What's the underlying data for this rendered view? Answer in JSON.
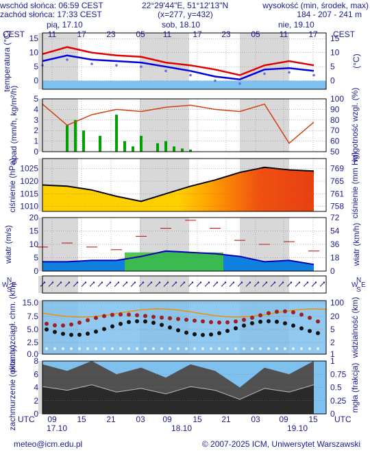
{
  "header": {
    "sunrise": "wschód słońca: 06:59 CEST",
    "sunset": "zachód słońca: 17:33 CEST",
    "coords": "22°29'44\"E, 51°12'13\"N",
    "grid": "(x=277, y=432)",
    "elev_title": "wysokość (min, środek, max)",
    "elev_values": "184 - 207 - 241 m"
  },
  "tz_label": "CEST",
  "utc_label": "UTC",
  "days_top": [
    "pią, 17.10",
    "sob, 18.10",
    "nie, 19.10"
  ],
  "hours_top": [
    "11",
    "17",
    "23",
    "05",
    "11",
    "17",
    "23",
    "05",
    "11",
    "17"
  ],
  "hours_bottom": [
    "09",
    "15",
    "21",
    "03",
    "09",
    "15",
    "21",
    "03",
    "09",
    "15"
  ],
  "days_bottom": [
    "17.10",
    "18.10",
    "19.10"
  ],
  "footer": {
    "email": "meteo@icm.edu.pl",
    "copyright": "© 2007-2025 ICM, Uniwersytet Warszawski"
  },
  "colors": {
    "text": "#1a1a8c",
    "night": "#d8d8d8",
    "temp_line": "#e00000",
    "dew_line": "#0000e0",
    "freeze_band": "#7ec0ee",
    "rain_bar": "#00a000",
    "humidity_line": "#d04010",
    "pressure_line": "#000000",
    "wind_mean": "#0000b0",
    "gust": "#c00000",
    "cloud_sky": "#7ec0ee",
    "cloud_dark": "#505050"
  },
  "chart_data": [
    {
      "type": "line",
      "name": "temperature",
      "ylabel": "temperatura (°C)",
      "yticks_left": [
        "15",
        "10",
        "5",
        "0"
      ],
      "yticks_right": [
        "15",
        "10",
        "5",
        "0"
      ],
      "ylabel_right": "(°C)",
      "ylim": [
        -3,
        17
      ],
      "x_hours": [
        0,
        6,
        12,
        18,
        24,
        30,
        36,
        42,
        48,
        54,
        60,
        66
      ],
      "series": [
        {
          "values": [
            9.5,
            12.0,
            10.0,
            9.0,
            8.5,
            6.5,
            5.5,
            4.0,
            2.0,
            5.5,
            7.0,
            5.5
          ]
        },
        {
          "values": [
            7.0,
            9.0,
            7.5,
            7.0,
            6.5,
            5.0,
            3.5,
            1.5,
            0.5,
            4.0,
            4.5,
            3.5
          ]
        }
      ]
    },
    {
      "type": "bar",
      "name": "precipitation",
      "ylabel": "opad (mm/h, kg/m²/h)",
      "ylabel_right": "wilgotność wzgl. (%)",
      "yticks_left": [
        "5",
        "4",
        "3",
        "2",
        "1",
        "0"
      ],
      "yticks_right": [
        "100",
        "90",
        "80",
        "70",
        "60",
        "50"
      ],
      "ylim": [
        0,
        5
      ],
      "x_hours": [
        6,
        8,
        10,
        14,
        18,
        20,
        22,
        24,
        28,
        30,
        32,
        34,
        36
      ],
      "values": [
        2.5,
        3.0,
        2.0,
        1.5,
        3.5,
        1.0,
        0.5,
        1.5,
        0.8,
        1.0,
        0.5,
        0.3,
        0.2
      ],
      "humidity_x": [
        0,
        6,
        12,
        18,
        24,
        30,
        36,
        42,
        48,
        54,
        60,
        66
      ],
      "humidity": [
        95,
        75,
        85,
        90,
        88,
        92,
        94,
        90,
        88,
        95,
        58,
        78
      ]
    },
    {
      "type": "area",
      "name": "pressure",
      "ylabel": "ciśnienie (hPa)",
      "ylabel_right": "ciśnienie (mm Hg)",
      "yticks_left": [
        "1025",
        "1020",
        "1015",
        "1010"
      ],
      "yticks_right": [
        "769",
        "765",
        "761",
        "758"
      ],
      "ylim": [
        1008,
        1029
      ],
      "x_hours": [
        0,
        6,
        12,
        18,
        24,
        30,
        36,
        42,
        48,
        54,
        60,
        66
      ],
      "values": [
        1018.5,
        1018.0,
        1016.5,
        1014.0,
        1012.0,
        1015.0,
        1018.0,
        1020.5,
        1023.5,
        1025.5,
        1024.5,
        1024.0
      ]
    },
    {
      "type": "area",
      "name": "wind",
      "ylabel": "wiatr (m/s)",
      "ylabel_right": "wiatr (km/h)",
      "yticks_left": [
        "20",
        "15",
        "10",
        "5",
        "0"
      ],
      "yticks_right": [
        "72",
        "54",
        "36",
        "18",
        "0"
      ],
      "ylim": [
        0,
        20
      ],
      "x_hours": [
        0,
        6,
        12,
        18,
        24,
        30,
        36,
        42,
        48,
        54,
        60,
        66
      ],
      "values": [
        3.5,
        3.5,
        4.0,
        4.0,
        5.5,
        7.5,
        7.0,
        6.5,
        5.5,
        3.5,
        4.0,
        2.5
      ],
      "gusts": [
        9.0,
        10.5,
        9.0,
        8.0,
        13.0,
        16.0,
        19.0,
        16.0,
        11.5,
        10.0,
        11.0,
        7.5
      ]
    },
    {
      "type": "scatter",
      "name": "wind-direction",
      "compass": [
        "N",
        "S",
        "W",
        "E"
      ]
    },
    {
      "type": "scatter",
      "name": "visibility",
      "ylabel": "pion. rozciągł. chm. (km)",
      "ylabel_right": "widzialność (km)",
      "yticks_left": [
        "15.0",
        "7.5",
        "5.0",
        "2.5",
        "0.0"
      ],
      "yticks_right": [
        "100",
        "20",
        "5",
        "2",
        "1"
      ]
    },
    {
      "type": "area",
      "name": "cloudiness",
      "ylabel": "zachmurzenie (oktanty)",
      "ylabel_right": "mgła (frakcja)",
      "yticks_left": [
        "8",
        "6",
        "4",
        "2",
        "0"
      ],
      "yticks_right": [
        "1",
        "0.75",
        "0.5",
        "0.25",
        "0"
      ],
      "ylim": [
        0,
        8
      ],
      "x_hours": [
        0,
        6,
        12,
        18,
        24,
        30,
        36,
        42,
        48,
        54,
        60,
        66
      ],
      "values": [
        7.5,
        6.5,
        8.0,
        6.0,
        7.0,
        5.5,
        7.5,
        6.5,
        4.0,
        7.0,
        6.0,
        8.0
      ]
    }
  ]
}
